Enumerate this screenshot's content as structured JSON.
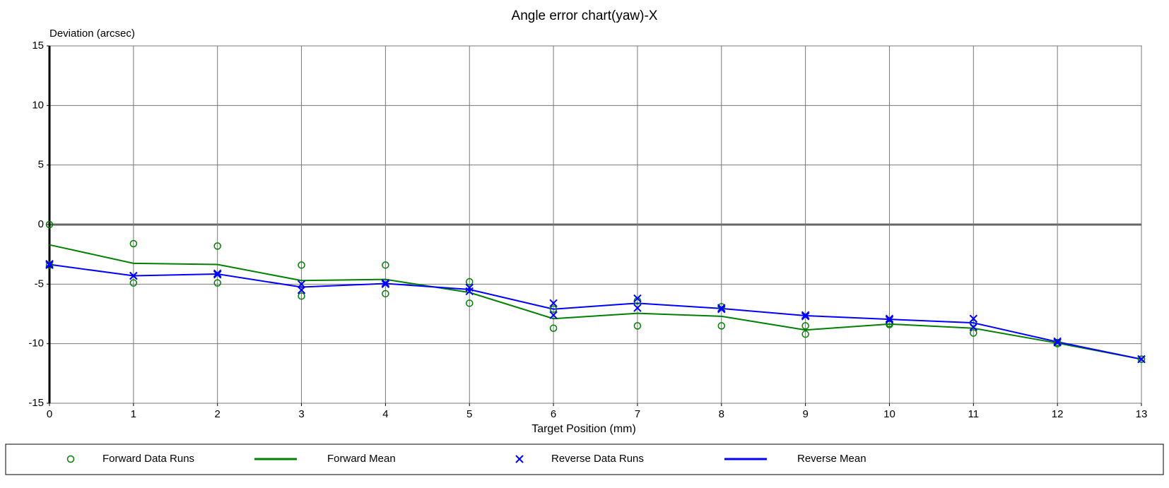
{
  "chart_data": {
    "type": "line",
    "title": "Angle error chart(yaw)-X",
    "ylabel": "Deviation (arcsec)",
    "xlabel": "Target Position (mm)",
    "x": [
      0,
      1,
      2,
      3,
      4,
      5,
      6,
      7,
      8,
      9,
      10,
      11,
      12,
      13
    ],
    "xlim": [
      0,
      13
    ],
    "xticks": [
      0,
      1,
      2,
      3,
      4,
      5,
      6,
      7,
      8,
      9,
      10,
      11,
      12,
      13
    ],
    "ylim": [
      -15,
      15
    ],
    "yticks": [
      -15,
      -10,
      -5,
      0,
      5,
      10,
      15
    ],
    "grid": true,
    "legend": "bottom",
    "series": [
      {
        "name": "Forward Data Runs",
        "color": "#008000",
        "style": "circle",
        "values": [
          [
            0,
            -3.4
          ],
          [
            -1.6,
            -4.9
          ],
          [
            -1.8,
            -4.9
          ],
          [
            -3.4,
            -6.0
          ],
          [
            -3.4,
            -5.8
          ],
          [
            -4.8,
            -6.6
          ],
          [
            -7.1,
            -8.7
          ],
          [
            -6.4,
            -8.5
          ],
          [
            -6.9,
            -8.5
          ],
          [
            -8.5,
            -9.2
          ],
          [
            -8.3,
            -8.4
          ],
          [
            -8.3,
            -9.1
          ],
          [
            -9.9,
            -10.0
          ],
          [
            -11.3,
            -11.3
          ]
        ]
      },
      {
        "name": "Forward Mean",
        "color": "#008000",
        "style": "line",
        "values": [
          -1.7,
          -3.25,
          -3.35,
          -4.7,
          -4.6,
          -5.7,
          -7.9,
          -7.45,
          -7.7,
          -8.85,
          -8.35,
          -8.7,
          -9.95,
          -11.3
        ]
      },
      {
        "name": "Reverse Data Runs",
        "color": "#0000ff",
        "style": "x",
        "values": [
          [
            -3.3,
            -3.4
          ],
          [
            -4.3,
            -4.3
          ],
          [
            -4.1,
            -4.2
          ],
          [
            -5.0,
            -5.5
          ],
          [
            -4.9,
            -5.0
          ],
          [
            -5.3,
            -5.6
          ],
          [
            -6.6,
            -7.6
          ],
          [
            -6.2,
            -7.0
          ],
          [
            -7.0,
            -7.1
          ],
          [
            -7.6,
            -7.7
          ],
          [
            -7.9,
            -8.0
          ],
          [
            -7.9,
            -8.6
          ],
          [
            -9.8,
            -9.9
          ],
          [
            -11.3,
            -11.3
          ]
        ]
      },
      {
        "name": "Reverse Mean",
        "color": "#0000ff",
        "style": "line",
        "values": [
          -3.35,
          -4.3,
          -4.15,
          -5.25,
          -4.95,
          -5.45,
          -7.1,
          -6.6,
          -7.05,
          -7.65,
          -7.95,
          -8.25,
          -9.85,
          -11.3
        ]
      }
    ]
  }
}
